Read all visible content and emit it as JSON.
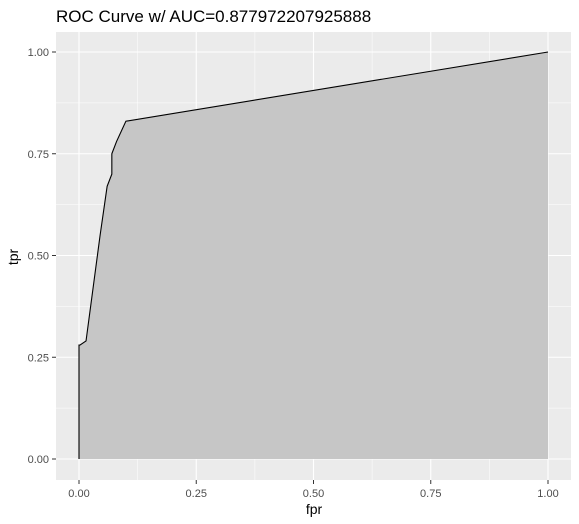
{
  "chart_data": {
    "type": "area",
    "title": "ROC Curve w/ AUC=0.877972207925888",
    "xlabel": "fpr",
    "ylabel": "tpr",
    "xlim": [
      0,
      1
    ],
    "ylim": [
      0,
      1
    ],
    "x_ticks": [
      "0.00",
      "0.25",
      "0.50",
      "0.75",
      "1.00"
    ],
    "y_ticks": [
      "0.00",
      "0.25",
      "0.50",
      "0.75",
      "1.00"
    ],
    "grid": true,
    "legend": "none",
    "colors": {
      "panel_background": "#ebebeb",
      "grid": "#ffffff",
      "area_fill": "#c6c6c6",
      "line": "#000000"
    },
    "series": [
      {
        "x": [
          0.0,
          0.0,
          0.002,
          0.015,
          0.03,
          0.045,
          0.06,
          0.07,
          0.07,
          0.08,
          0.1,
          1.0
        ],
        "y": [
          0.0,
          0.28,
          0.28,
          0.29,
          0.42,
          0.55,
          0.67,
          0.7,
          0.75,
          0.78,
          0.83,
          1.0
        ]
      }
    ]
  }
}
